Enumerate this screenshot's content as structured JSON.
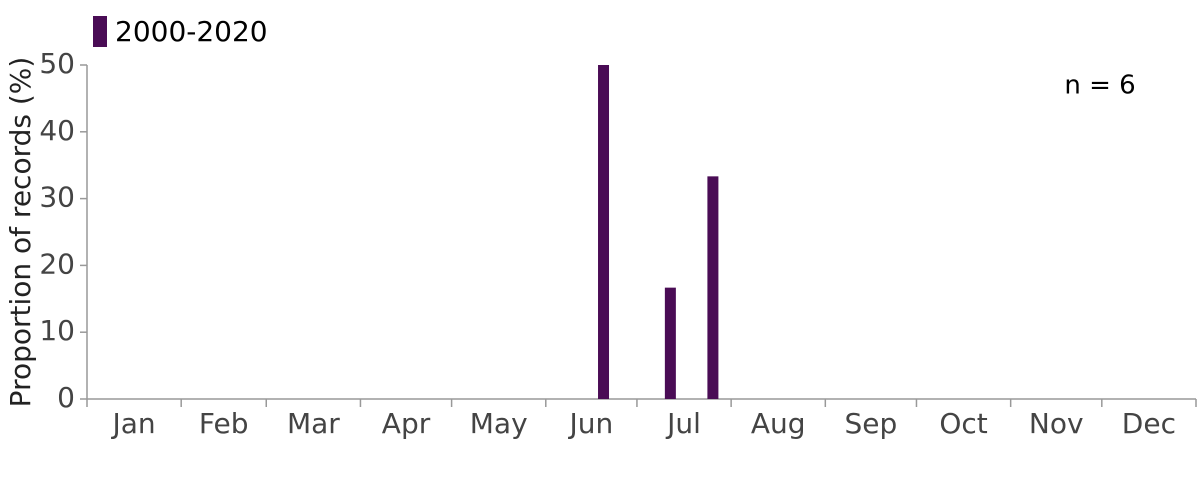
{
  "chart_data": {
    "type": "bar",
    "ylabel": "Proportion of records (%)",
    "annotation": "n = 6",
    "x": [
      170,
      192,
      206
    ],
    "series": [
      {
        "name": "2000-2020",
        "color": "#4a0c55",
        "values": [
          50,
          16.67,
          33.33
        ]
      }
    ],
    "xlim": [
      0,
      365
    ],
    "xticks": [
      {
        "value": 0,
        "label": "Jan"
      },
      {
        "value": 31,
        "label": "Feb"
      },
      {
        "value": 59,
        "label": "Mar"
      },
      {
        "value": 90,
        "label": "Apr"
      },
      {
        "value": 120,
        "label": "May"
      },
      {
        "value": 151,
        "label": "Jun"
      },
      {
        "value": 181,
        "label": "Jul"
      },
      {
        "value": 212,
        "label": "Aug"
      },
      {
        "value": 243,
        "label": "Sep"
      },
      {
        "value": 273,
        "label": "Oct"
      },
      {
        "value": 304,
        "label": "Nov"
      },
      {
        "value": 334,
        "label": "Dec"
      }
    ],
    "ylim": [
      0,
      50
    ],
    "yticks": [
      0,
      10,
      20,
      30,
      40,
      50
    ],
    "legend": "top-left"
  }
}
